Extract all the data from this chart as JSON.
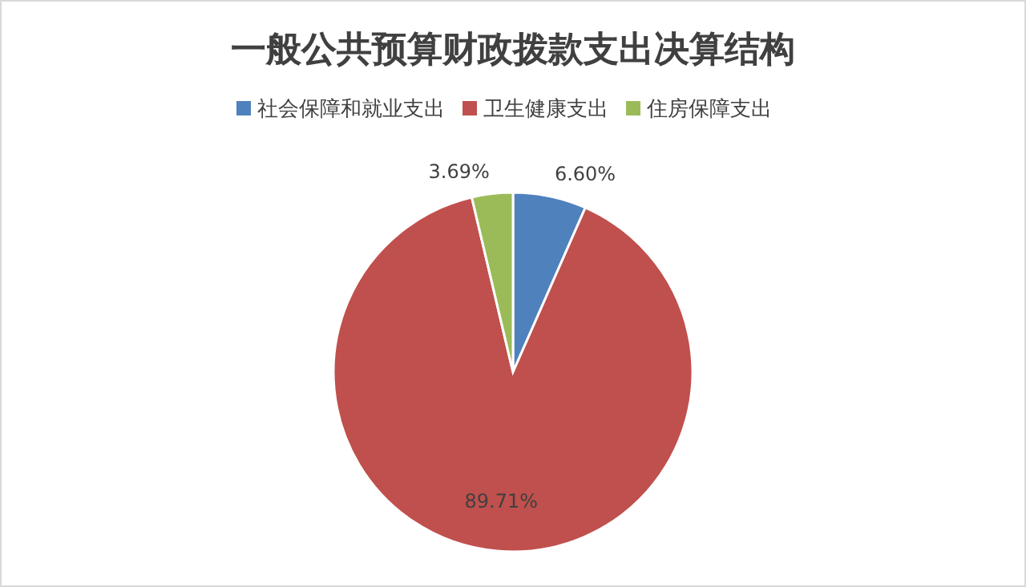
{
  "chart_data": {
    "type": "pie",
    "title": "一般公共预算财政拨款支出决算结构",
    "categories": [
      "社会保障和就业支出",
      "卫生健康支出",
      "住房保障支出"
    ],
    "values": [
      6.6,
      89.71,
      3.69
    ],
    "colors": [
      "#4f81bd",
      "#c0504d",
      "#9bbb59"
    ],
    "value_labels": [
      "6.60%",
      "89.71%",
      "3.69%"
    ],
    "legend": "top"
  }
}
